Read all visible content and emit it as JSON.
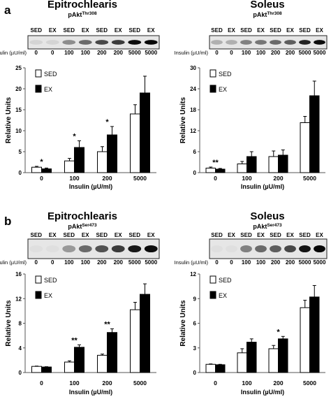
{
  "figure": {
    "panels": [
      {
        "letter": "a",
        "left": {
          "title": "Epitrochlearis",
          "protein_base": "pAkt",
          "protein_sup": "Thr308",
          "lane_labels": [
            "SED",
            "EX",
            "SED",
            "EX",
            "SED",
            "EX",
            "SED",
            "EX"
          ],
          "insulin_label": "Insulin (µU/ml)",
          "insulin_lanes": [
            "0",
            "0",
            "100",
            "100",
            "200",
            "200",
            "5000",
            "5000"
          ],
          "band_intensity": [
            0.1,
            0.1,
            0.4,
            0.55,
            0.7,
            0.75,
            0.95,
            0.97
          ]
        },
        "right": {
          "title": "Soleus",
          "protein_base": "pAkt",
          "protein_sup": "Thr308",
          "lane_labels": [
            "SED",
            "EX",
            "SED",
            "EX",
            "SED",
            "EX",
            "SED",
            "EX"
          ],
          "insulin_label": "Insulin (µU/ml)",
          "insulin_lanes": [
            "0",
            "0",
            "100",
            "100",
            "200",
            "200",
            "5000",
            "5000"
          ],
          "band_intensity": [
            0.25,
            0.25,
            0.45,
            0.5,
            0.55,
            0.6,
            0.85,
            0.95
          ]
        }
      },
      {
        "letter": "b",
        "left": {
          "title": "Epitrochlearis",
          "protein_base": "pAkt",
          "protein_sup": "Ser473",
          "lane_labels": [
            "SED",
            "EX",
            "SED",
            "EX",
            "SED",
            "EX",
            "SED",
            "EX"
          ],
          "insulin_label": "Insulin (µU/ml)",
          "insulin_lanes": [
            "0",
            "0",
            "100",
            "100",
            "200",
            "200",
            "5000",
            "5000"
          ],
          "band_intensity": [
            0.05,
            0.05,
            0.35,
            0.55,
            0.65,
            0.75,
            0.9,
            0.95
          ]
        },
        "right": {
          "title": "Soleus",
          "protein_base": "pAkt",
          "protein_sup": "Ser473",
          "lane_labels": [
            "SED",
            "EX",
            "SED",
            "EX",
            "SED",
            "EX",
            "SED",
            "EX"
          ],
          "insulin_label": "Insulin (µU/ml)",
          "insulin_lanes": [
            "0",
            "0",
            "100",
            "100",
            "200",
            "200",
            "5000",
            "5000"
          ],
          "band_intensity": [
            0.05,
            0.05,
            0.45,
            0.55,
            0.6,
            0.7,
            0.92,
            0.97
          ]
        }
      }
    ]
  },
  "colors": {
    "sed_fill": "#ffffff",
    "ex_fill": "#000000",
    "axis": "#555555",
    "blot_bg": "#e6e6e6"
  },
  "chart_data": [
    {
      "type": "bar",
      "panel": "a-left",
      "categories": [
        "0",
        "100",
        "200",
        "5000"
      ],
      "xlabel": "Insulin (µU/ml)",
      "ylabel": "Relative Units",
      "ylim": [
        0,
        25
      ],
      "yticks": [
        0,
        5,
        10,
        15,
        20,
        25
      ],
      "legend": "top-left",
      "series": [
        {
          "name": "SED",
          "values": [
            1.3,
            2.8,
            5.0,
            14.0
          ],
          "errors": [
            0.2,
            0.6,
            1.2,
            2.2
          ]
        },
        {
          "name": "EX",
          "values": [
            0.9,
            6.0,
            9.0,
            19.0
          ],
          "errors": [
            0.2,
            1.6,
            2.0,
            4.0
          ]
        }
      ],
      "annotations": [
        {
          "category": "0",
          "label": "*"
        },
        {
          "category": "100",
          "label": "*"
        },
        {
          "category": "200",
          "label": "*"
        }
      ]
    },
    {
      "type": "bar",
      "panel": "a-right",
      "categories": [
        "0",
        "100",
        "200",
        "5000"
      ],
      "xlabel": "Insulin (µU/ml)",
      "ylabel": "Relative Units",
      "ylim": [
        0,
        30
      ],
      "yticks": [
        0,
        6,
        12,
        18,
        24,
        30
      ],
      "legend": "top-left",
      "series": [
        {
          "name": "SED",
          "values": [
            1.3,
            2.5,
            4.6,
            14.3
          ],
          "errors": [
            0.3,
            0.7,
            1.6,
            1.8
          ]
        },
        {
          "name": "EX",
          "values": [
            1.0,
            4.6,
            5.0,
            22.0
          ],
          "errors": [
            0.2,
            1.4,
            1.5,
            4.2
          ]
        }
      ],
      "annotations": [
        {
          "category": "0",
          "label": "**"
        }
      ]
    },
    {
      "type": "bar",
      "panel": "b-left",
      "categories": [
        "0",
        "100",
        "200",
        "5000"
      ],
      "xlabel": "Insulin (µU/ml)",
      "ylabel": "Relative Units",
      "ylim": [
        0,
        16
      ],
      "yticks": [
        0,
        4,
        8,
        12,
        16
      ],
      "legend": "top-left",
      "series": [
        {
          "name": "SED",
          "values": [
            1.0,
            1.7,
            2.8,
            10.2
          ],
          "errors": [
            0.05,
            0.2,
            0.2,
            1.2
          ]
        },
        {
          "name": "EX",
          "values": [
            0.9,
            4.1,
            6.5,
            12.7
          ],
          "errors": [
            0.05,
            0.4,
            0.6,
            1.7
          ]
        }
      ],
      "annotations": [
        {
          "category": "100",
          "label": "**"
        },
        {
          "category": "200",
          "label": "**"
        }
      ]
    },
    {
      "type": "bar",
      "panel": "b-right",
      "categories": [
        "0",
        "100",
        "200",
        "5000"
      ],
      "xlabel": "Insulin (µU/ml)",
      "ylabel": "Relative Units",
      "ylim": [
        0,
        12
      ],
      "yticks": [
        0,
        3,
        6,
        9,
        12
      ],
      "legend": "top-left",
      "series": [
        {
          "name": "SED",
          "values": [
            1.0,
            2.4,
            2.9,
            7.9
          ],
          "errors": [
            0.05,
            0.5,
            0.4,
            0.9
          ]
        },
        {
          "name": "EX",
          "values": [
            0.95,
            3.7,
            4.1,
            9.2
          ],
          "errors": [
            0.05,
            0.4,
            0.3,
            1.4
          ]
        }
      ],
      "annotations": [
        {
          "category": "200",
          "label": "*"
        }
      ]
    }
  ]
}
